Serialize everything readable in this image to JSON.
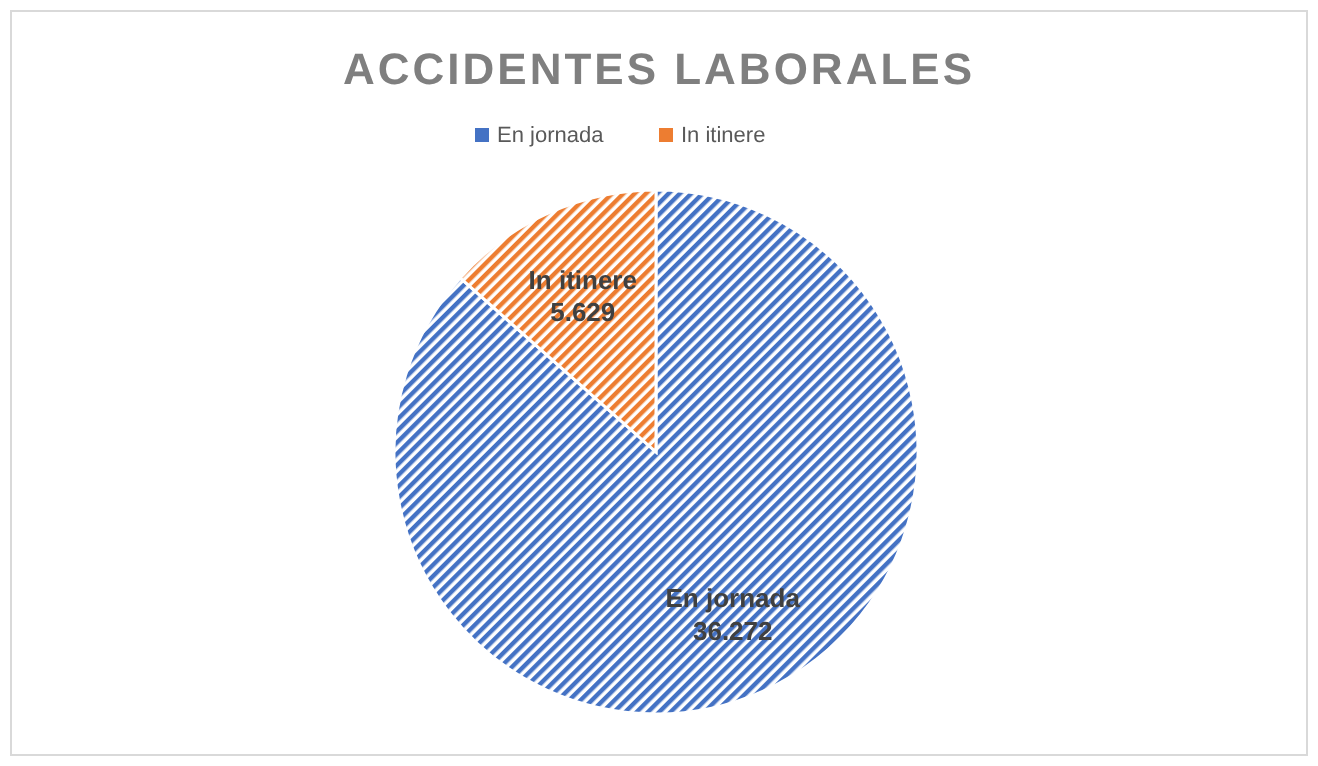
{
  "chart_data": {
    "type": "pie",
    "title": "ACCIDENTES LABORALES",
    "categories": [
      "En jornada",
      "In itinere"
    ],
    "values": [
      36272,
      5629
    ],
    "value_labels": [
      "36.272",
      "5.629"
    ],
    "colors": [
      "#4472c4",
      "#ed7d31"
    ],
    "legend": "top"
  }
}
